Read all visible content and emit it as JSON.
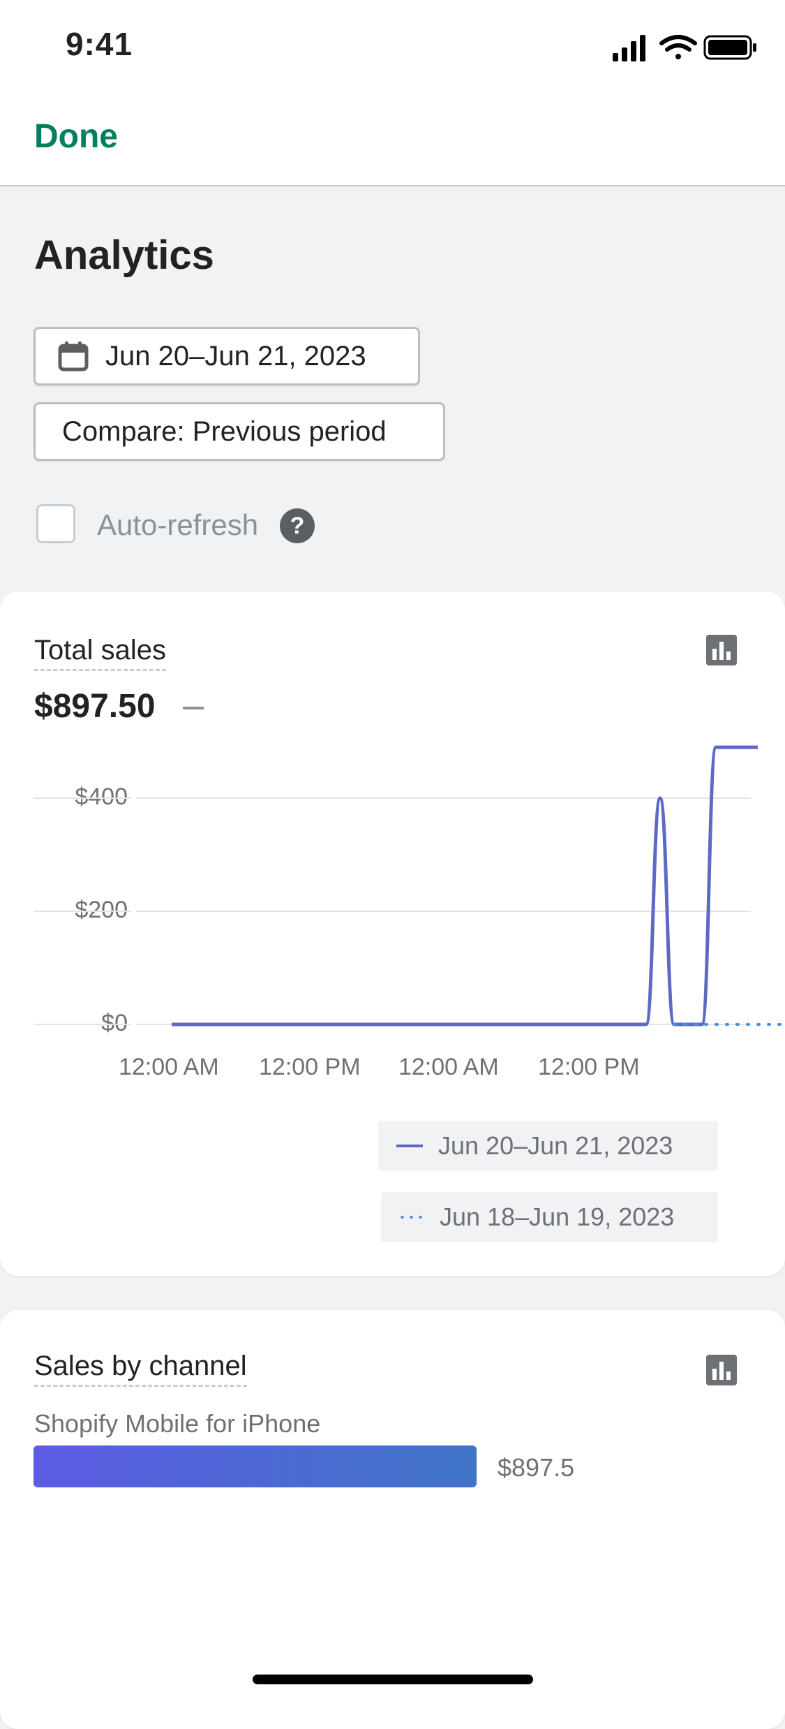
{
  "status_bar": {
    "time": "9:41"
  },
  "nav": {
    "done_label": "Done"
  },
  "header": {
    "title": "Analytics",
    "date_range_label": "Jun 20–Jun 21, 2023",
    "compare_label": "Compare: Previous period",
    "auto_refresh_label": "Auto-refresh",
    "auto_refresh_checked": false,
    "help_glyph": "?"
  },
  "total_sales": {
    "title": "Total sales",
    "value": "$897.50"
  },
  "chart_data": {
    "type": "line",
    "y_ticks": [
      "$400",
      "$200",
      "$0"
    ],
    "x_ticks": [
      "12:00 AM",
      "12:00 PM",
      "12:00 AM",
      "12:00 PM"
    ],
    "ylim": [
      0,
      400
    ],
    "grid": true,
    "series": [
      {
        "name": "Jun 20–Jun 21, 2023",
        "style": "solid",
        "color": "#5c6ac4",
        "x_hours": [
          0,
          34,
          35,
          36,
          37,
          38,
          39,
          40,
          41,
          42
        ],
        "values": [
          0,
          0,
          400,
          0,
          0,
          0,
          490,
          490,
          490,
          490
        ]
      },
      {
        "name": "Jun 18–Jun 19, 2023",
        "style": "dotted",
        "color": "#4a90d9",
        "x_hours": [
          36,
          47
        ],
        "values": [
          0,
          0
        ]
      }
    ],
    "legend_position": "bottom-right"
  },
  "sales_by_channel": {
    "title": "Sales by channel",
    "channels": [
      {
        "label": "Shopify Mobile for iPhone",
        "value": "$897.5",
        "fraction": 1.0
      }
    ]
  },
  "colors": {
    "accent": "#008060",
    "primary_line": "#5c6ac4",
    "compare_line": "#4a90d9"
  },
  "icons": [
    "cellular-signal-icon",
    "wifi-icon",
    "battery-icon",
    "calendar-icon",
    "help-icon",
    "bar-chart-icon"
  ]
}
